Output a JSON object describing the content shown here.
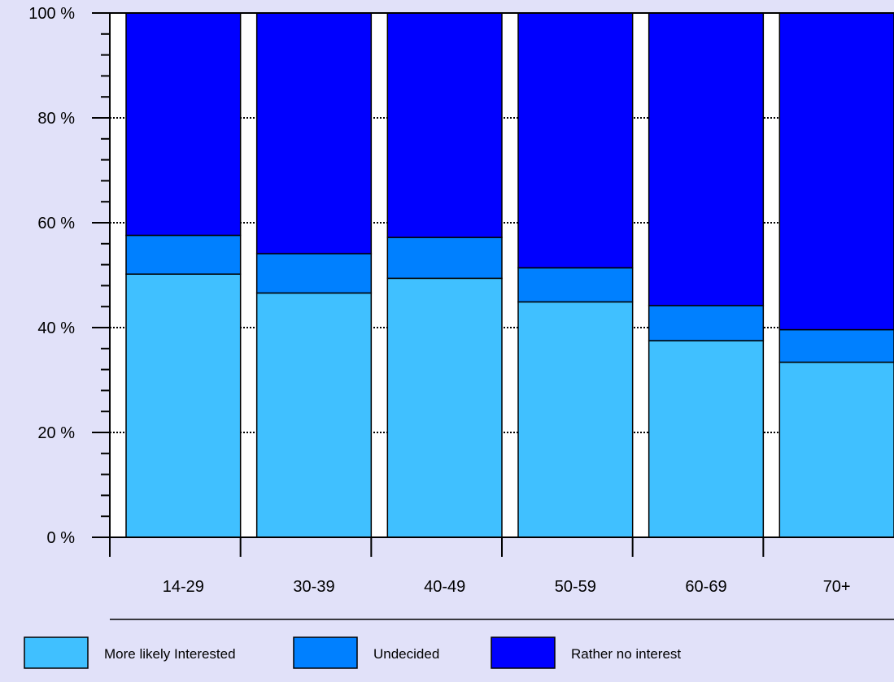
{
  "chart_data": {
    "type": "bar",
    "stacked": true,
    "categories": [
      "14-29",
      "30-39",
      "40-49",
      "50-59",
      "60-69",
      "70+"
    ],
    "series": [
      {
        "name": "More likely Interested",
        "color": "#40c0ff",
        "values": [
          50.2,
          46.6,
          49.4,
          44.9,
          37.5,
          33.4
        ]
      },
      {
        "name": "Undecided",
        "color": "#0080ff",
        "values": [
          7.4,
          7.5,
          7.8,
          6.5,
          6.7,
          6.2
        ]
      },
      {
        "name": "Rather no interest",
        "color": "#0000ff",
        "values": [
          42.4,
          45.9,
          42.8,
          48.6,
          55.8,
          60.4
        ]
      }
    ],
    "y_ticks": [
      "0 %",
      "20 %",
      "40 %",
      "60 %",
      "80 %",
      "100 %"
    ],
    "ylim": [
      0,
      100
    ],
    "grid": true,
    "legend_position": "bottom",
    "title": "",
    "xlabel": "",
    "ylabel": ""
  }
}
